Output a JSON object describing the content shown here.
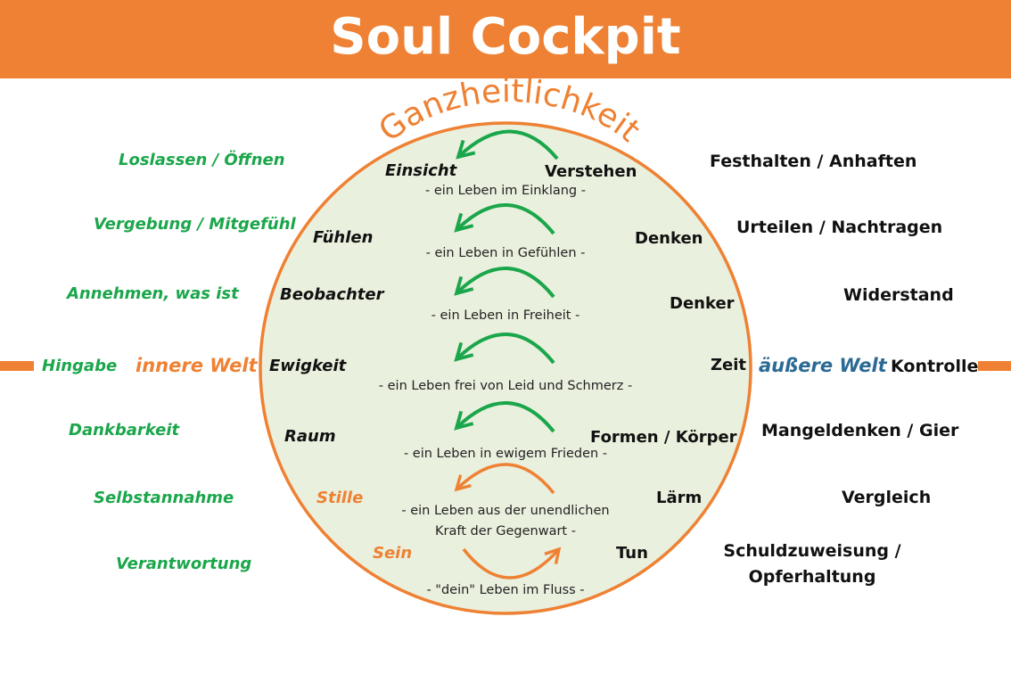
{
  "title": "Soul Cockpit",
  "arc_title": "Ganzheitlichkeit",
  "colors": {
    "orange": "#ee8133",
    "green": "#1aa64a",
    "blue": "#2b6a94",
    "circle_fill": "#eaf0de"
  },
  "worlds": {
    "inner": "innere Welt",
    "outer": "äußere Welt"
  },
  "left": [
    "Loslassen / Öffnen",
    "Vergebung / Mitgefühl",
    "Annehmen, was ist",
    "Hingabe",
    "Dankbarkeit",
    "Selbstannahme",
    "Verantwortung"
  ],
  "right": [
    "Festhalten / Anhaften",
    "Urteilen / Nachtragen",
    "Widerstand",
    "Kontrolle",
    "Mangeldenken / Gier",
    "Vergleich",
    "Schuldzuweisung /",
    "Opferhaltung"
  ],
  "inner_left": [
    "Einsicht",
    "Fühlen",
    "Beobachter",
    "Ewigkeit",
    "Raum",
    "Stille",
    "Sein"
  ],
  "inner_right": [
    "Verstehen",
    "Denken",
    "Denker",
    "Zeit",
    "Formen / Körper",
    "Lärm",
    "Tun"
  ],
  "sublines": [
    "- ein Leben im Einklang -",
    "- ein Leben in Gefühlen -",
    "- ein Leben in Freiheit -",
    "- ein Leben frei von Leid und Schmerz -",
    "- ein Leben in ewigem Frieden -",
    "- ein Leben aus der unendlichen",
    "Kraft der Gegenwart -",
    "- \"dein\" Leben im Fluss -"
  ]
}
